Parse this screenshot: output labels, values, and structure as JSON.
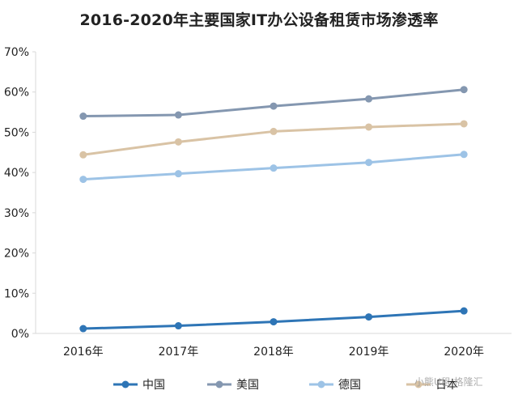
{
  "chart_data": {
    "type": "line",
    "title": "2016-2020年主要国家IT办公设备租赁市场渗透率",
    "categories": [
      "2016年",
      "2017年",
      "2018年",
      "2019年",
      "2020年"
    ],
    "ylim": [
      0,
      70
    ],
    "yticks": [
      0,
      10,
      20,
      30,
      40,
      50,
      60,
      70
    ],
    "ytick_labels": [
      "0%",
      "10%",
      "20%",
      "30%",
      "40%",
      "50%",
      "60%",
      "70%"
    ],
    "grid": false,
    "legend_position": "bottom",
    "series": [
      {
        "name": "中国",
        "values": [
          1.2,
          1.9,
          2.9,
          4.1,
          5.6
        ],
        "color": "#2e75b6"
      },
      {
        "name": "美国",
        "values": [
          54.0,
          54.3,
          56.5,
          58.3,
          60.6
        ],
        "color": "#8497b0"
      },
      {
        "name": "德国",
        "values": [
          38.3,
          39.7,
          41.1,
          42.5,
          44.5
        ],
        "color": "#9dc3e6"
      },
      {
        "name": "日本",
        "values": [
          44.4,
          47.6,
          50.2,
          51.3,
          52.1
        ],
        "color": "#d9c3a5"
      }
    ],
    "watermark": "小熊U租 格隆汇"
  }
}
